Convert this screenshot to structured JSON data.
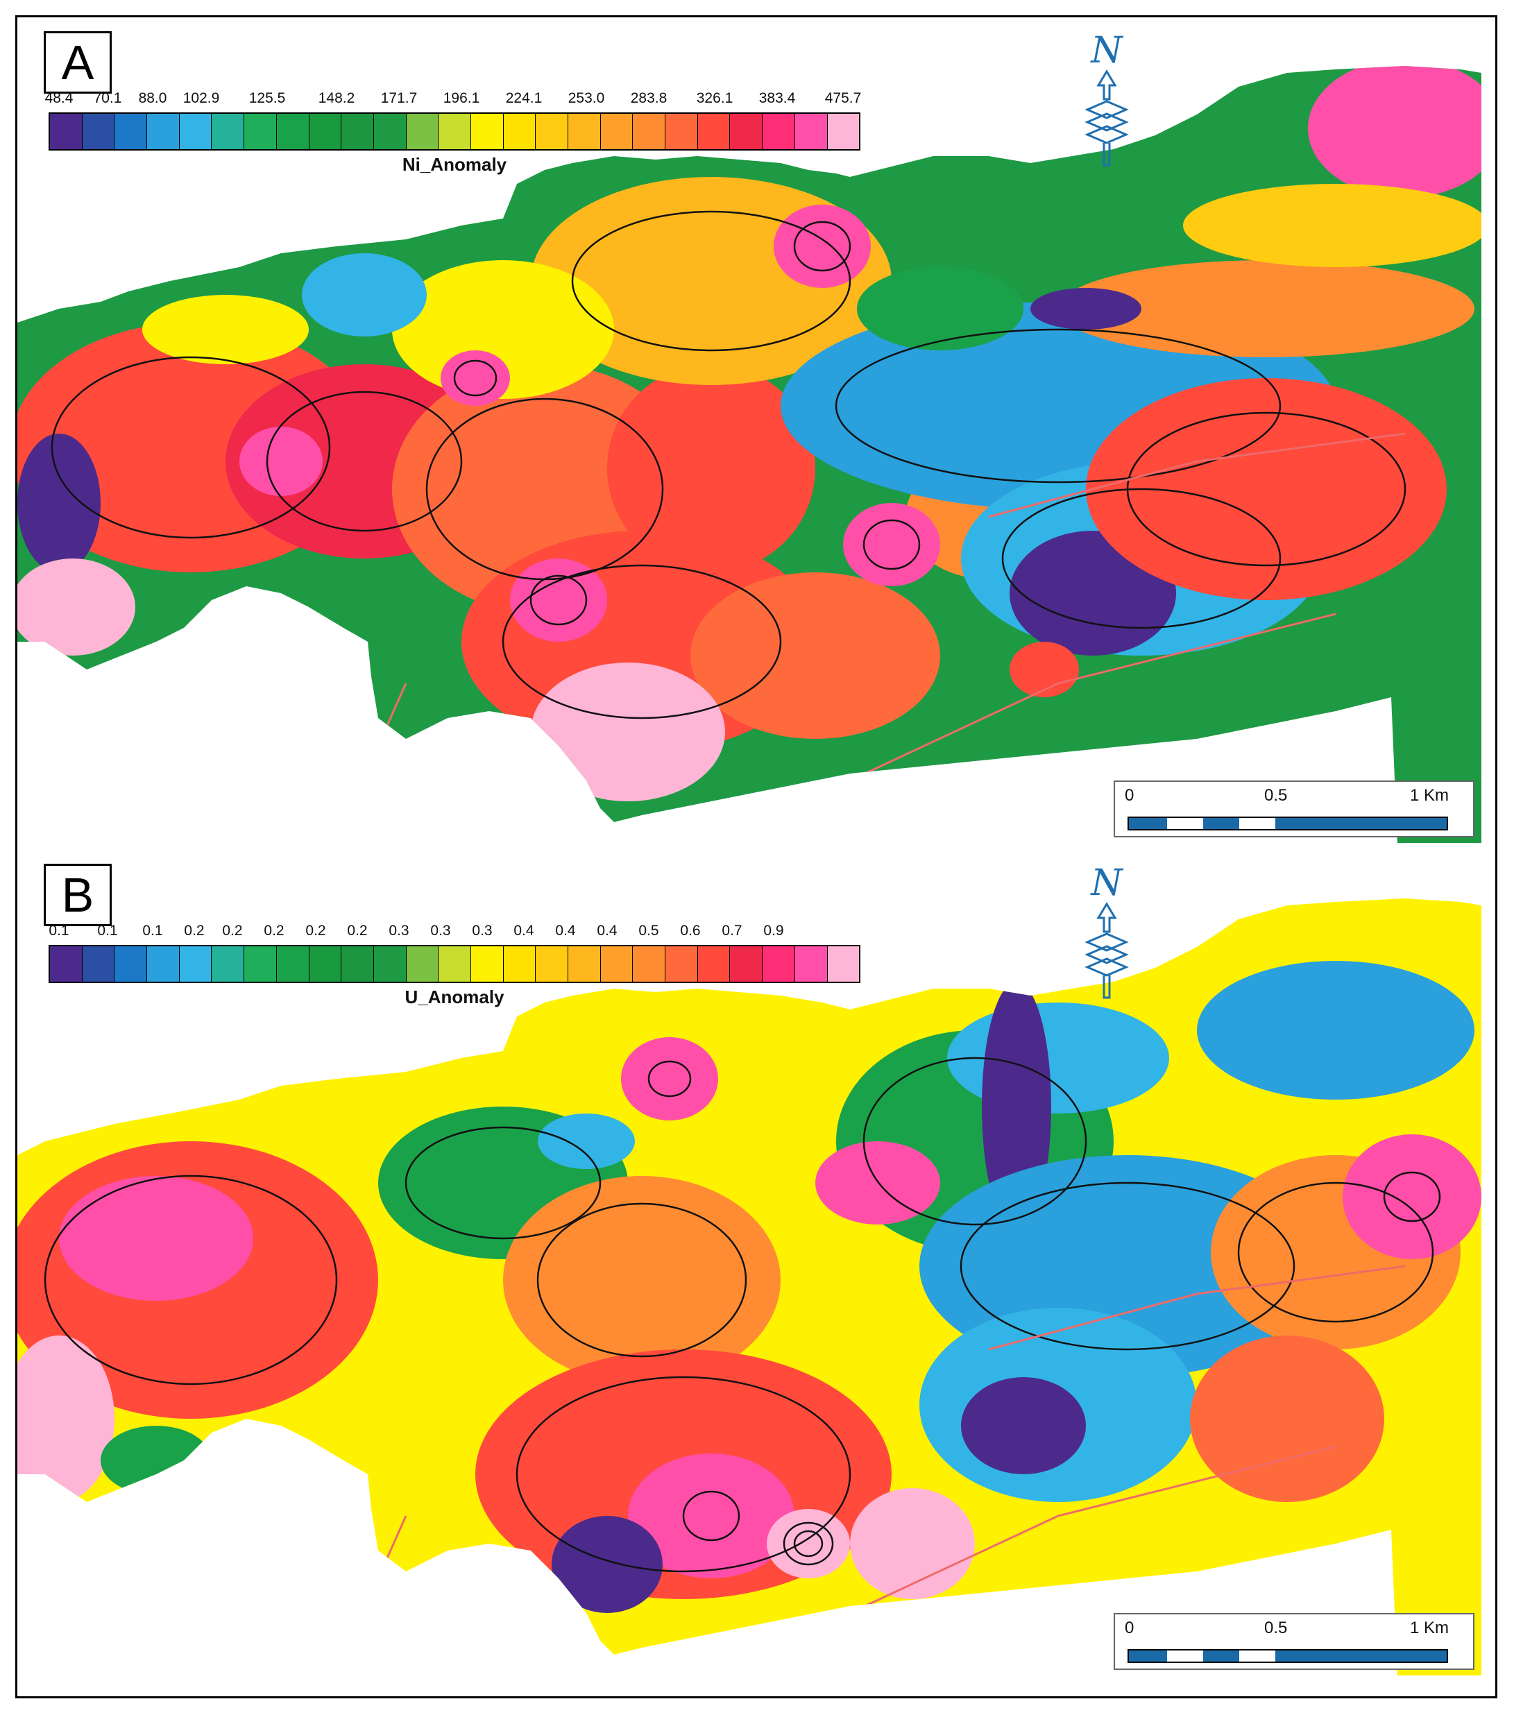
{
  "colors": {
    "legend": [
      "#4b2a8c",
      "#2b4fa4",
      "#1e78c8",
      "#2aa0dc",
      "#33b4e6",
      "#25b29b",
      "#1fae5a",
      "#1aa24a",
      "#1a9a3e",
      "#1c9640",
      "#1e9a44",
      "#7cc242",
      "#c8de2e",
      "#fff200",
      "#ffe100",
      "#ffcc11",
      "#ffb71e",
      "#ffa02a",
      "#ff8c32",
      "#ff6a3c",
      "#ff4a3c",
      "#f0284a",
      "#ff2e78",
      "#ff4fa8",
      "#ffb6d6"
    ],
    "contour": "#111111",
    "fault": "#ef6a6a",
    "lineament": "#a06ac8",
    "north_arrow": "#1f6fb0",
    "scale_fill": "#1a6aa8"
  },
  "panels": [
    {
      "label": "A",
      "legend_title": "Ni_Anomaly",
      "legend_ticks": [
        "48.4",
        "70.1",
        "88.0",
        "102.9",
        "125.5",
        "148.2",
        "171.7",
        "196.1",
        "224.1",
        "253.0",
        "283.8",
        "326.1",
        "383.4",
        "475.7"
      ],
      "north_label": "N",
      "scale_labels": [
        "0",
        "0.5",
        "1 Km"
      ]
    },
    {
      "label": "B",
      "legend_title": "U_Anomaly",
      "legend_ticks": [
        "0.1",
        "0.1",
        "0.1",
        "0.2",
        "0.2",
        "0.2",
        "0.2",
        "0.2",
        "0.3",
        "0.3",
        "0.3",
        "0.4",
        "0.4",
        "0.4",
        "0.5",
        "0.6",
        "0.7",
        "0.9"
      ],
      "north_label": "N",
      "scale_labels": [
        "0",
        "0.5",
        "1 Km"
      ]
    }
  ]
}
